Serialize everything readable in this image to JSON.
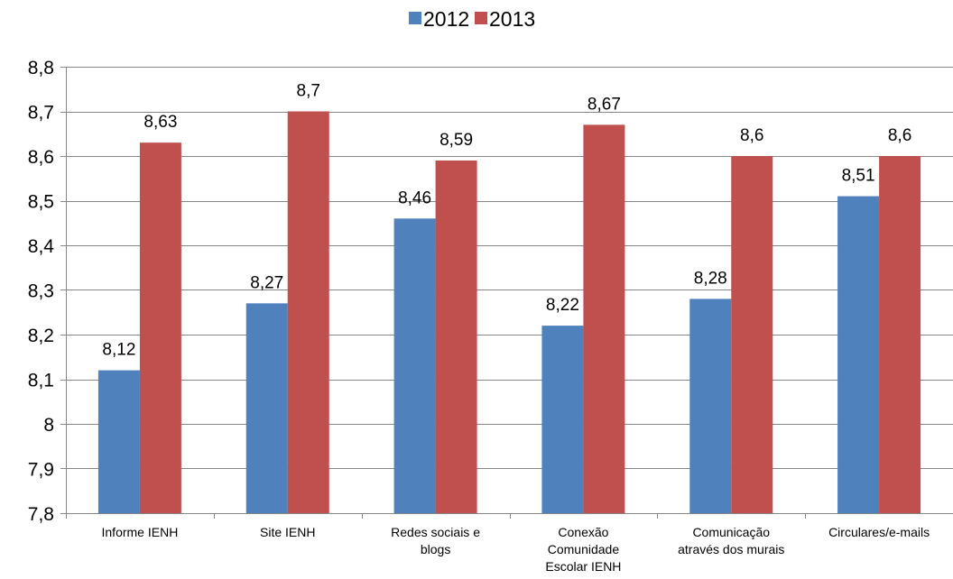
{
  "chart_data": {
    "type": "bar",
    "title": "",
    "xlabel": "",
    "ylabel": "",
    "categories": [
      "Informe IENH",
      "Site IENH",
      "Redes sociais e blogs",
      "Conexão Comunidade Escolar IENH",
      "Comunicação através dos murais",
      "Circulares/e-mails"
    ],
    "category_lines": [
      [
        "Informe IENH"
      ],
      [
        "Site IENH"
      ],
      [
        "Redes sociais e",
        "blogs"
      ],
      [
        "Conexão",
        "Comunidade",
        "Escolar IENH"
      ],
      [
        "Comunicação",
        "através dos murais"
      ],
      [
        "Circulares/e-mails"
      ]
    ],
    "series": [
      {
        "name": "2012",
        "color": "#4F81BD",
        "values": [
          8.12,
          8.27,
          8.46,
          8.22,
          8.28,
          8.51
        ],
        "labels": [
          "8,12",
          "8,27",
          "8,46",
          "8,22",
          "8,28",
          "8,51"
        ]
      },
      {
        "name": "2013",
        "color": "#C0504D",
        "values": [
          8.63,
          8.7,
          8.59,
          8.67,
          8.6,
          8.6
        ],
        "labels": [
          "8,63",
          "8,7",
          "8,59",
          "8,67",
          "8,6",
          "8,6"
        ]
      }
    ],
    "ylim": [
      7.8,
      8.8
    ],
    "yticks": [
      7.8,
      7.9,
      8.0,
      8.1,
      8.2,
      8.3,
      8.4,
      8.5,
      8.6,
      8.7,
      8.8
    ],
    "ytick_labels": [
      "7,8",
      "7,9",
      "8",
      "8,1",
      "8,2",
      "8,3",
      "8,4",
      "8,5",
      "8,6",
      "8,7",
      "8,8"
    ],
    "grid": true,
    "legend_position": "top-center",
    "colors": {
      "grid": "#868686",
      "axis": "#868686"
    }
  }
}
